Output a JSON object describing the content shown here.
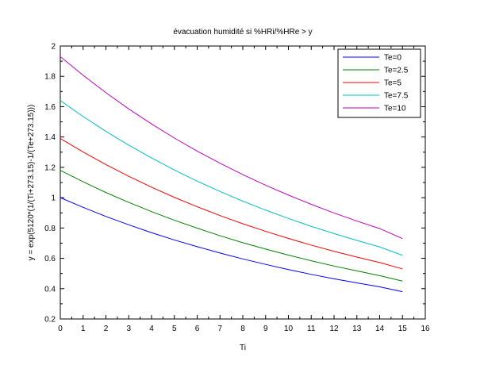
{
  "chart_data": {
    "type": "line",
    "title": "évacuation humidité si %HRi/%HRe > y",
    "xlabel": "Ti",
    "ylabel": "y = exp(5120*(1/(Ti+273.15)-1/(Te+273.15)))",
    "xlim": [
      0,
      16
    ],
    "ylim": [
      0.2,
      2
    ],
    "x_ticks": [
      "0",
      "1",
      "2",
      "3",
      "4",
      "5",
      "6",
      "7",
      "8",
      "9",
      "10",
      "11",
      "12",
      "13",
      "14",
      "15",
      "16"
    ],
    "y_ticks": [
      "0.2",
      "0.4",
      "0.6",
      "0.8",
      "1",
      "1.2",
      "1.4",
      "1.6",
      "1.8",
      "2"
    ],
    "grid": false,
    "legend_position": "top-right",
    "series": [
      {
        "name": "Te=0",
        "color": "#0000ff",
        "x": [
          0,
          1,
          2,
          3,
          4,
          5,
          6,
          7,
          8,
          9,
          10,
          11,
          12,
          13,
          14,
          15
        ],
        "values": [
          1.0,
          0.936,
          0.876,
          0.821,
          0.769,
          0.721,
          0.677,
          0.635,
          0.596,
          0.56,
          0.526,
          0.494,
          0.465,
          0.438,
          0.412,
          0.38
        ]
      },
      {
        "name": "Te=2.5",
        "color": "#008000",
        "x": [
          0,
          1,
          2,
          3,
          4,
          5,
          6,
          7,
          8,
          9,
          10,
          11,
          12,
          13,
          14,
          15
        ],
        "values": [
          1.18,
          1.105,
          1.034,
          0.969,
          0.908,
          0.851,
          0.799,
          0.749,
          0.703,
          0.661,
          0.621,
          0.584,
          0.549,
          0.517,
          0.486,
          0.45
        ]
      },
      {
        "name": "Te=5",
        "color": "#ff0000",
        "x": [
          0,
          1,
          2,
          3,
          4,
          5,
          6,
          7,
          8,
          9,
          10,
          11,
          12,
          13,
          14,
          15
        ],
        "values": [
          1.39,
          1.301,
          1.218,
          1.141,
          1.069,
          1.002,
          0.94,
          0.882,
          0.828,
          0.778,
          0.731,
          0.687,
          0.646,
          0.608,
          0.572,
          0.53
        ]
      },
      {
        "name": "Te=7.5",
        "color": "#00bfbf",
        "x": [
          0,
          1,
          2,
          3,
          4,
          5,
          6,
          7,
          8,
          9,
          10,
          11,
          12,
          13,
          14,
          15
        ],
        "values": [
          1.64,
          1.535,
          1.437,
          1.346,
          1.262,
          1.183,
          1.109,
          1.041,
          0.977,
          0.918,
          0.863,
          0.811,
          0.763,
          0.718,
          0.675,
          0.62
        ]
      },
      {
        "name": "Te=10",
        "color": "#bf00bf",
        "x": [
          0,
          1,
          2,
          3,
          4,
          5,
          6,
          7,
          8,
          9,
          10,
          11,
          12,
          13,
          14,
          15
        ],
        "values": [
          1.93,
          1.807,
          1.692,
          1.585,
          1.486,
          1.393,
          1.307,
          1.227,
          1.152,
          1.082,
          1.017,
          0.956,
          0.899,
          0.846,
          0.796,
          0.73
        ]
      }
    ]
  }
}
